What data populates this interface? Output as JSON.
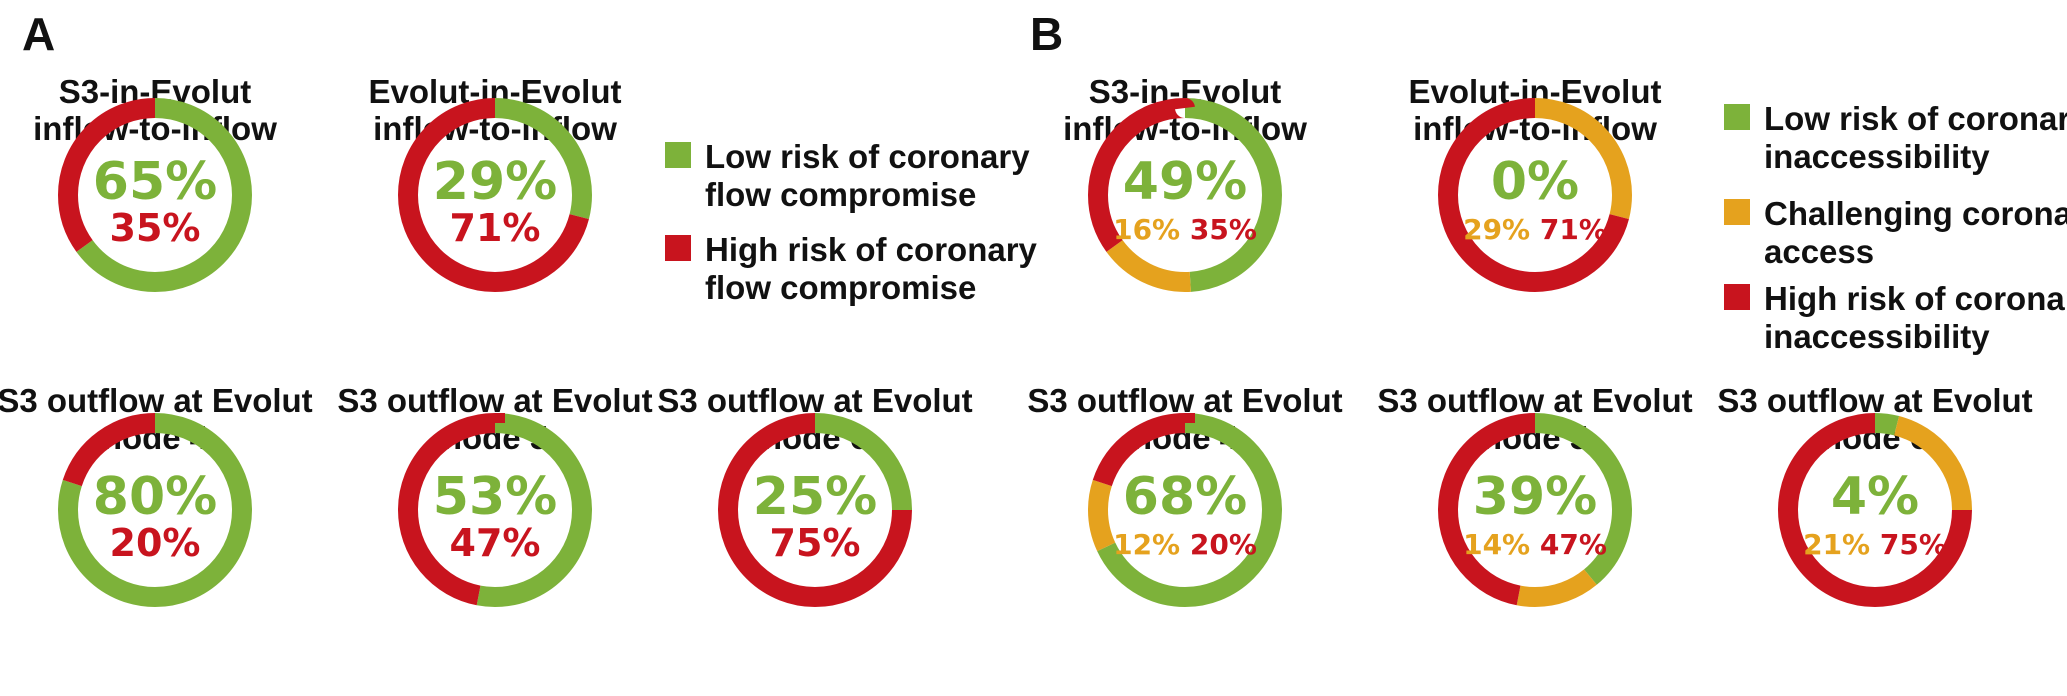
{
  "colors": {
    "low": "#7db23a",
    "challenging": "#e5a21e",
    "high": "#c8141e"
  },
  "chart_data": [
    {
      "type": "pie",
      "panel": "A",
      "legend": [
        {
          "key": "low",
          "label": "Low risk of coronary flow compromise"
        },
        {
          "key": "high",
          "label": "High risk of coronary flow compromise"
        }
      ],
      "charts": [
        {
          "title": [
            "S3-in-Evolut",
            "inflow-to-inflow"
          ],
          "segments": [
            {
              "key": "low",
              "value": 65
            },
            {
              "key": "high",
              "value": 35
            }
          ]
        },
        {
          "title": [
            "Evolut-in-Evolut",
            "inflow-to-inflow"
          ],
          "segments": [
            {
              "key": "low",
              "value": 29
            },
            {
              "key": "high",
              "value": 71
            }
          ]
        },
        {
          "title": [
            "S3 outflow at Evolut",
            "node 4"
          ],
          "segments": [
            {
              "key": "low",
              "value": 80
            },
            {
              "key": "high",
              "value": 20
            }
          ]
        },
        {
          "title": [
            "S3 outflow at Evolut",
            "node 5"
          ],
          "segments": [
            {
              "key": "low",
              "value": 53
            },
            {
              "key": "high",
              "value": 47
            }
          ]
        },
        {
          "title": [
            "S3 outflow at Evolut",
            "node 6"
          ],
          "segments": [
            {
              "key": "low",
              "value": 25
            },
            {
              "key": "high",
              "value": 75
            }
          ]
        }
      ]
    },
    {
      "type": "pie",
      "panel": "B",
      "legend": [
        {
          "key": "low",
          "label": "Low risk of coronary inaccessibility"
        },
        {
          "key": "challenging",
          "label": "Challenging coronary access"
        },
        {
          "key": "high",
          "label": "High risk of coronary inaccessibility"
        }
      ],
      "charts": [
        {
          "title": [
            "S3-in-Evolut",
            "inflow-to-inflow"
          ],
          "segments": [
            {
              "key": "low",
              "value": 49
            },
            {
              "key": "challenging",
              "value": 16
            },
            {
              "key": "high",
              "value": 35
            }
          ]
        },
        {
          "title": [
            "Evolut-in-Evolut",
            "inflow-to-inflow"
          ],
          "segments": [
            {
              "key": "low",
              "value": 0
            },
            {
              "key": "challenging",
              "value": 29
            },
            {
              "key": "high",
              "value": 71
            }
          ]
        },
        {
          "title": [
            "S3 outflow at Evolut",
            "node 4"
          ],
          "segments": [
            {
              "key": "low",
              "value": 68
            },
            {
              "key": "challenging",
              "value": 12
            },
            {
              "key": "high",
              "value": 20
            }
          ]
        },
        {
          "title": [
            "S3 outflow at Evolut",
            "node 5"
          ],
          "segments": [
            {
              "key": "low",
              "value": 39
            },
            {
              "key": "challenging",
              "value": 14
            },
            {
              "key": "high",
              "value": 47
            }
          ]
        },
        {
          "title": [
            "S3 outflow at Evolut",
            "node 6"
          ],
          "segments": [
            {
              "key": "low",
              "value": 4
            },
            {
              "key": "challenging",
              "value": 21
            },
            {
              "key": "high",
              "value": 75
            }
          ]
        }
      ]
    }
  ]
}
